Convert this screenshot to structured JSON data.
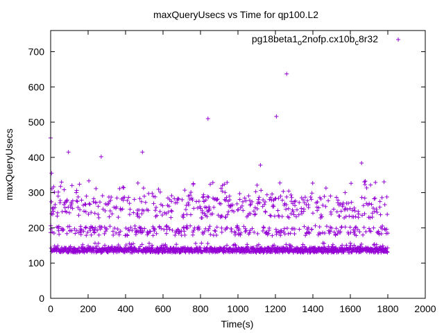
{
  "chart_data": {
    "type": "scatter",
    "title": "maxQueryUsecs vs Time for qp100.L2",
    "xlabel": "Time(s)",
    "ylabel": "maxQueryUsecs",
    "xlim": [
      0,
      2000
    ],
    "ylim": [
      0,
      760
    ],
    "x_ticks": [
      0,
      200,
      400,
      600,
      800,
      1000,
      1200,
      1400,
      1600,
      1800,
      2000
    ],
    "y_ticks": [
      0,
      100,
      200,
      300,
      400,
      500,
      600,
      700
    ],
    "x_tick_labels": [
      "0",
      "200",
      "400",
      "600",
      "800",
      "1000",
      "1200",
      "1400",
      "1600",
      "1800",
      "2000"
    ],
    "y_tick_labels": [
      "0",
      "100",
      "200",
      "300",
      "400",
      "500",
      "600",
      "700"
    ],
    "grid": false,
    "legend_position": "top-right",
    "legend": {
      "base": "pg18beta1",
      "sub1": "o",
      "mid": "2nofp.cx10b",
      "sub2": "c",
      "tail": "8r32"
    },
    "marker": "plus",
    "color": "#9400D3",
    "series": [
      {
        "name": "pg18beta1_o2nofp.cx10b_c8r32",
        "description": "about 1800 points, one per second from 0 to about 1800 s; dense baseline band near 130-145, upper clusters near 180-200 and 230-300, occasional spikes",
        "notable_points": [
          {
            "x": 0,
            "y": 455
          },
          {
            "x": 5,
            "y": 355
          },
          {
            "x": 95,
            "y": 415
          },
          {
            "x": 270,
            "y": 402
          },
          {
            "x": 490,
            "y": 415
          },
          {
            "x": 840,
            "y": 510
          },
          {
            "x": 1205,
            "y": 516
          },
          {
            "x": 1260,
            "y": 637
          },
          {
            "x": 1120,
            "y": 378
          },
          {
            "x": 1660,
            "y": 384
          }
        ]
      }
    ]
  }
}
